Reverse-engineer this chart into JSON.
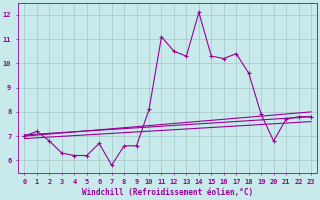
{
  "bg_color": "#c8eaea",
  "line_color": "#990099",
  "grid_color": "#aacccc",
  "xlabel": "Windchill (Refroidissement éolien,°C)",
  "xlim": [
    -0.5,
    23.5
  ],
  "ylim": [
    5.5,
    12.5
  ],
  "yticks": [
    6,
    7,
    8,
    9,
    10,
    11,
    12
  ],
  "xticks": [
    0,
    1,
    2,
    3,
    4,
    5,
    6,
    7,
    8,
    9,
    10,
    11,
    12,
    13,
    14,
    15,
    16,
    17,
    18,
    19,
    20,
    21,
    22,
    23
  ],
  "series": [
    {
      "x": [
        0,
        1,
        2,
        3,
        4,
        5,
        6,
        7,
        8,
        9,
        10,
        11,
        12,
        13,
        14,
        15,
        16,
        17,
        18,
        19,
        20,
        21,
        22,
        23
      ],
      "y": [
        7.0,
        7.2,
        6.8,
        6.3,
        6.2,
        6.2,
        6.7,
        5.8,
        6.6,
        6.6,
        8.1,
        11.1,
        10.5,
        10.3,
        12.1,
        10.3,
        10.2,
        10.4,
        9.6,
        7.9,
        6.8,
        7.7,
        7.8,
        7.8
      ]
    },
    {
      "x": [
        0,
        23
      ],
      "y": [
        7.0,
        8.0
      ]
    },
    {
      "x": [
        0,
        23
      ],
      "y": [
        6.9,
        7.6
      ]
    },
    {
      "x": [
        0,
        23
      ],
      "y": [
        7.05,
        7.8
      ]
    }
  ],
  "tick_fontsize": 5.0,
  "xlabel_fontsize": 5.5,
  "lw": 0.8,
  "marker_size": 3.0
}
